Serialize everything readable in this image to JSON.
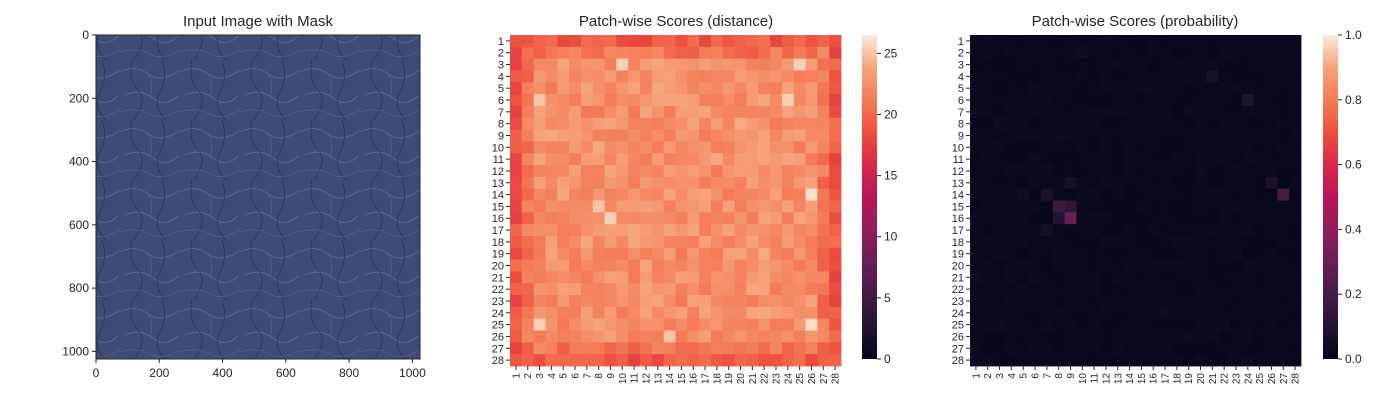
{
  "colors": {
    "leather_base": "#3f4b76",
    "leather_light": "#5c6894",
    "leather_dark": "#2a3257",
    "axis": "#262626"
  },
  "chart_data": [
    {
      "type": "image",
      "title": "Input Image with Mask",
      "xlim": [
        0,
        1024
      ],
      "ylim": [
        1024,
        0
      ],
      "xticks": [
        "0",
        "200",
        "400",
        "600",
        "800",
        "1000"
      ],
      "yticks": [
        "0",
        "200",
        "400",
        "600",
        "800",
        "1000"
      ]
    },
    {
      "type": "heatmap",
      "title": "Patch-wise Scores (distance)",
      "rows": 28,
      "cols": 28,
      "row_labels": [
        "1",
        "2",
        "3",
        "4",
        "5",
        "6",
        "7",
        "8",
        "9",
        "10",
        "11",
        "12",
        "13",
        "14",
        "15",
        "16",
        "17",
        "18",
        "19",
        "20",
        "21",
        "22",
        "23",
        "24",
        "25",
        "26",
        "27",
        "28"
      ],
      "col_labels": [
        "1",
        "2",
        "3",
        "4",
        "5",
        "6",
        "7",
        "8",
        "9",
        "10",
        "11",
        "12",
        "13",
        "14",
        "15",
        "16",
        "17",
        "18",
        "19",
        "20",
        "21",
        "22",
        "23",
        "24",
        "25",
        "26",
        "27",
        "28"
      ],
      "colorbar": {
        "min": 0,
        "max": 26.5,
        "ticks": [
          "0",
          "5",
          "10",
          "15",
          "20",
          "25"
        ]
      },
      "colormap": "rocket",
      "edge_value": 19,
      "interior_value": 22.5,
      "bright_spots": [
        {
          "row": 3,
          "col": 10,
          "value": 25.5
        },
        {
          "row": 3,
          "col": 25,
          "value": 25.5
        },
        {
          "row": 6,
          "col": 3,
          "value": 25
        },
        {
          "row": 6,
          "col": 24,
          "value": 25.5
        },
        {
          "row": 15,
          "col": 8,
          "value": 25
        },
        {
          "row": 16,
          "col": 9,
          "value": 25.5
        },
        {
          "row": 14,
          "col": 26,
          "value": 26
        },
        {
          "row": 25,
          "col": 3,
          "value": 25.5
        },
        {
          "row": 25,
          "col": 26,
          "value": 26
        },
        {
          "row": 26,
          "col": 14,
          "value": 25
        }
      ]
    },
    {
      "type": "heatmap",
      "title": "Patch-wise Scores (probability)",
      "rows": 28,
      "cols": 28,
      "row_labels": [
        "1",
        "2",
        "3",
        "4",
        "5",
        "6",
        "7",
        "8",
        "9",
        "10",
        "11",
        "12",
        "13",
        "14",
        "15",
        "16",
        "17",
        "18",
        "19",
        "20",
        "21",
        "22",
        "23",
        "24",
        "25",
        "26",
        "27",
        "28"
      ],
      "col_labels": [
        "1",
        "2",
        "3",
        "4",
        "5",
        "6",
        "7",
        "8",
        "9",
        "10",
        "11",
        "12",
        "13",
        "14",
        "15",
        "16",
        "17",
        "18",
        "19",
        "20",
        "21",
        "22",
        "23",
        "24",
        "25",
        "26",
        "27",
        "28"
      ],
      "colorbar": {
        "min": 0,
        "max": 1,
        "ticks": [
          "0.0",
          "0.2",
          "0.4",
          "0.6",
          "0.8",
          "1.0"
        ]
      },
      "colormap": "rocket",
      "background_value": 0.01,
      "hot_cells": [
        {
          "row": 15,
          "col": 8,
          "value": 0.18
        },
        {
          "row": 15,
          "col": 9,
          "value": 0.14
        },
        {
          "row": 16,
          "col": 9,
          "value": 0.3
        },
        {
          "row": 16,
          "col": 8,
          "value": 0.1
        },
        {
          "row": 14,
          "col": 7,
          "value": 0.08
        },
        {
          "row": 14,
          "col": 27,
          "value": 0.2
        },
        {
          "row": 13,
          "col": 26,
          "value": 0.08
        },
        {
          "row": 13,
          "col": 9,
          "value": 0.07
        },
        {
          "row": 6,
          "col": 24,
          "value": 0.09
        },
        {
          "row": 4,
          "col": 21,
          "value": 0.07
        },
        {
          "row": 17,
          "col": 7,
          "value": 0.06
        },
        {
          "row": 14,
          "col": 5,
          "value": 0.05
        },
        {
          "row": 2,
          "col": 10,
          "value": 0.04
        }
      ]
    }
  ]
}
